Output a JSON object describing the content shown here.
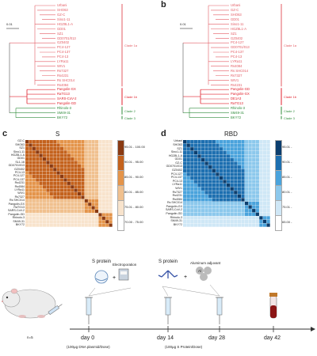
{
  "panels": {
    "a": "",
    "b": "b",
    "c": "c",
    "d": "d"
  },
  "scale_bars": {
    "a": "0.01",
    "b": "0.01"
  },
  "tree_a": {
    "labels": [
      "Urbani",
      "SHO63",
      "GZ-C",
      "Sino1-11",
      "HGZ8L1-A",
      "GD01",
      "SZ1",
      "GD0701/013",
      "GZ0402",
      "PC4-127",
      "PC4-137",
      "PC4-13",
      "LYRa11",
      "WIV1",
      "Rs7327",
      "Rs4231",
      "Rs SHC014",
      "Rs4084",
      "Pangolin-GX",
      "RaTG13",
      "SARS-CoV-2",
      "Pangolin-GD",
      "Rhinolo-3",
      "SM49-31",
      "BKY72"
    ],
    "clade_labels": [
      "Clade 1a",
      "Clade 1b",
      "Clade 2",
      "Clade 3"
    ]
  },
  "tree_b": {
    "labels": [
      "Urbani",
      "GZ-C",
      "SHO63",
      "GD01",
      "Sino1-11",
      "HGZ8L1-A",
      "SZ1",
      "GZ0402",
      "PC4-127",
      "GD0701/013",
      "PC4-137",
      "PC4-13",
      "LYRa11",
      "Rs4084",
      "Rs SHC014",
      "Rs7327",
      "WIV1",
      "Rs4231",
      "Pangolin-GD",
      "Pangolin-GX",
      "DE1A3",
      "RaTG13",
      "Rhinolo-3",
      "SM49-31",
      "BKY72"
    ],
    "clade_labels": [
      "Clade 1a",
      "Clade 1b",
      "Clade 2",
      "Clade 3"
    ]
  },
  "heatmap_c": {
    "title": "S",
    "rows": [
      "GZ-C",
      "SHO63",
      "SZ1",
      "Sino1-11",
      "HGZ8L1-A",
      "GD01",
      "SL1-16",
      "GD0701/013",
      "GZ0402",
      "PC4-13",
      "PC4-127",
      "PC4-137",
      "Rs4231",
      "Rs4084",
      "LYRa11",
      "WIV1",
      "Rs7327",
      "Rs SHC014",
      "Pangolin-GX",
      "RaTG13",
      "SARS-CoV-2",
      "Pangolin-GD",
      "Rhinolo-3",
      "SM49-31",
      "BKY72"
    ],
    "legend": [
      "95.01 - 100.00",
      "90.01 - 95.00",
      "85.01 - 90.00",
      "80.01 - 85.00",
      "75.01 - 80.00",
      "70.00 - 75.00"
    ],
    "legend_colors": [
      "#8a3a12",
      "#c4621d",
      "#e4944a",
      "#f0c08e",
      "#f8e3cc",
      "#ffffff"
    ]
  },
  "heatmap_d": {
    "title": "RBD",
    "rows": [
      "Urbani",
      "SHO63",
      "SZ1",
      "Sino1-11",
      "HGZ8L1-A",
      "GD01",
      "GZ-C",
      "GD0701/013",
      "GZ0402",
      "PC4-127",
      "PC4-137",
      "PC4-13",
      "LYRa11",
      "WIV1",
      "Rs7327",
      "Rs4231",
      "Rs4084",
      "Rs SHC014",
      "Pangolin-GX",
      "SARS-CoV-2",
      "Pangolin-GD",
      "Rhinolo-3",
      "SM49-31",
      "BKY72"
    ],
    "legend": [
      "95.01 -",
      "90.01 -",
      "85.01 -",
      "80.01 -",
      "75.01 -",
      "65.00 -"
    ],
    "legend_colors": [
      "#0c3e6e",
      "#1d6fb0",
      "#4aa3dc",
      "#8cc8ec",
      "#cfe7f6",
      "#ffffff"
    ]
  },
  "timeline": {
    "guinea_pig_label": "n=5",
    "step1_title": "S protein",
    "step1_extra": "Electroporation",
    "step2_title": "S protein",
    "step2_extra": "Aluminum adjuvant",
    "day0": "day 0",
    "day14": "day 14",
    "day28": "day 28",
    "day42": "day 42",
    "dose1": "(100μg DNA plasmid/Dose)",
    "dose2": "(100μg S Protein/Dose)",
    "alum_al": "Al"
  },
  "colors": {
    "clade1": "#e35b63",
    "clade2": "#e0202c",
    "clade3": "#2e8b3a"
  }
}
